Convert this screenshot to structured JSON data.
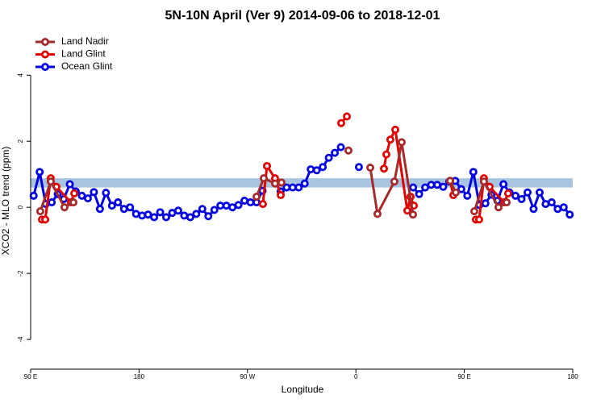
{
  "chart_data": {
    "type": "line",
    "title": "5N-10N April (Ver 9)   2014-09-06 to 2018-12-01",
    "x_label": "Longitude",
    "y_label": "XCO2 - MLO trend (ppm)",
    "xlim": [
      90,
      540
    ],
    "ylim": [
      -4.9,
      5.3
    ],
    "xticks": [
      {
        "value": 90,
        "label": "90 E"
      },
      180,
      {
        "value": 270,
        "label": "90 W"
      },
      {
        "value": 360,
        "label": "0"
      },
      {
        "value": 450,
        "label": "90 E"
      },
      {
        "value": 540,
        "label": "180"
      }
    ],
    "yticks": [
      -4,
      -2,
      0,
      2,
      4
    ],
    "band": {
      "range": [
        0.6,
        0.88
      ],
      "color": "#a9c4e0"
    },
    "legend": "top-left",
    "series": [
      {
        "name": "Land Nadir",
        "color": "#a52a2a",
        "x": [
          98,
          106.7,
          118.1,
          125.5,
          200,
          277.5,
          283.5,
          292.9,
          298.2,
          320,
          353.8,
          365,
          371.9,
          377.9,
          392,
          398,
          407.4,
          420,
          438.2,
          442.9,
          450,
          458.3,
          466.3,
          478.4,
          485.1
        ],
        "values": [
          -0.12,
          0.78,
          0.0,
          0.15,
          null,
          0.32,
          0.88,
          0.72,
          0.75,
          null,
          1.72,
          null,
          1.2,
          -0.2,
          0.78,
          1.97,
          -0.22,
          null,
          0.8,
          0.45,
          null,
          -0.12,
          0.78,
          0.0,
          0.15
        ]
      },
      {
        "name": "Land Glint",
        "color": "#e00000",
        "x": [
          99.4,
          102.1,
          106.7,
          111.4,
          123.4,
          126.2,
          200,
          282.8,
          286.2,
          292.9,
          297.6,
          320,
          347.8,
          352.5,
          365,
          383.3,
          385.3,
          388.6,
          392.7,
          402.7,
          405.4,
          408.1,
          420,
          438.2,
          440.9,
          450,
          459.6,
          462.3,
          466.3,
          471.0,
          483.1,
          486.4
        ],
        "values": [
          -0.37,
          -0.37,
          0.88,
          0.62,
          0.15,
          0.42,
          null,
          0.1,
          1.25,
          0.88,
          0.37,
          null,
          2.55,
          2.75,
          null,
          1.17,
          1.6,
          2.05,
          2.35,
          -0.1,
          0.32,
          0.05,
          null,
          0.8,
          0.37,
          null,
          -0.37,
          -0.37,
          0.88,
          0.62,
          0.15,
          0.42
        ]
      },
      {
        "name": "Ocean Glint",
        "color": "#0000e0",
        "x": [
          92.5,
          97.5,
          102.5,
          107.5,
          112.5,
          117.5,
          122.5,
          127.5,
          132.5,
          137.5,
          142.5,
          147.5,
          152.5,
          157.5,
          162.5,
          167.5,
          172.5,
          177.5,
          182.5,
          187.5,
          192.5,
          197.5,
          202.5,
          207.5,
          212.5,
          217.5,
          222.5,
          227.5,
          232.5,
          237.5,
          242.5,
          247.5,
          252.5,
          257.5,
          262.5,
          267.5,
          272.5,
          277.5,
          282.5,
          287.5,
          292.5,
          297.5,
          302.5,
          307.5,
          312.5,
          317.5,
          322.5,
          327.5,
          332.5,
          337.5,
          342.5,
          347.5,
          352.5,
          357.5,
          362.5,
          367.5,
          372.5,
          377.5,
          382.5,
          387.5,
          392.5,
          397.5,
          402.5,
          407.5,
          412.5,
          417.5,
          422.5,
          427.5,
          432.5,
          437.5,
          442.5,
          447.5,
          452.5,
          457.5,
          462.5,
          467.5,
          472.5,
          477.5,
          482.5,
          487.5,
          492.5,
          497.5,
          502.5,
          507.5,
          512.5,
          517.5,
          522.5,
          527.5,
          532.5,
          537.5
        ],
        "values": [
          0.35,
          1.07,
          0.1,
          0.15,
          0.4,
          0.25,
          0.7,
          0.48,
          0.35,
          0.27,
          0.46,
          -0.05,
          0.44,
          0.05,
          0.15,
          -0.05,
          0.0,
          -0.2,
          -0.25,
          -0.22,
          -0.3,
          -0.15,
          -0.3,
          -0.17,
          -0.1,
          -0.25,
          -0.3,
          -0.2,
          -0.05,
          -0.27,
          -0.08,
          0.05,
          0.05,
          0.0,
          0.07,
          0.2,
          0.15,
          0.15,
          0.5,
          null,
          null,
          0.48,
          0.6,
          0.6,
          0.6,
          0.72,
          1.15,
          1.12,
          1.22,
          1.5,
          1.65,
          1.82,
          null,
          null,
          1.22,
          null,
          null,
          null,
          null,
          null,
          null,
          null,
          null,
          0.6,
          0.4,
          0.6,
          0.68,
          0.68,
          0.62,
          0.78,
          0.8,
          0.55,
          0.35,
          1.07,
          0.07,
          0.12,
          0.38,
          0.2,
          0.7,
          0.45,
          0.35,
          0.25,
          0.45,
          -0.05,
          0.45,
          0.1,
          0.15,
          -0.05,
          0.0,
          -0.22
        ]
      }
    ]
  }
}
